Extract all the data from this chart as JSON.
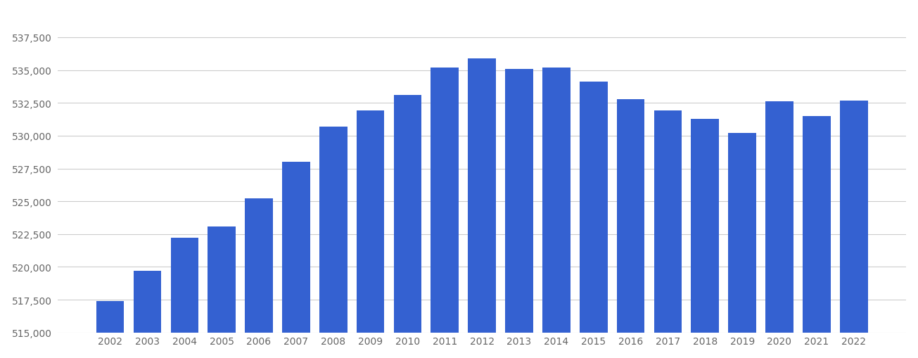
{
  "years": [
    2002,
    2003,
    2004,
    2005,
    2006,
    2007,
    2008,
    2009,
    2010,
    2011,
    2012,
    2013,
    2014,
    2015,
    2016,
    2017,
    2018,
    2019,
    2020,
    2021,
    2022
  ],
  "values": [
    517400,
    519700,
    522200,
    523100,
    525200,
    528000,
    530700,
    531900,
    533100,
    535200,
    535900,
    535100,
    535200,
    534100,
    532800,
    531900,
    531300,
    530200,
    532600,
    531500,
    532700
  ],
  "bar_color": "#3461d1",
  "background_color": "#ffffff",
  "grid_color": "#cccccc",
  "ylim_min": 515000,
  "ylim_max": 539500,
  "ytick_step": 2500,
  "ytick_min": 515000,
  "ytick_max": 537500,
  "bar_bottom": 515000
}
